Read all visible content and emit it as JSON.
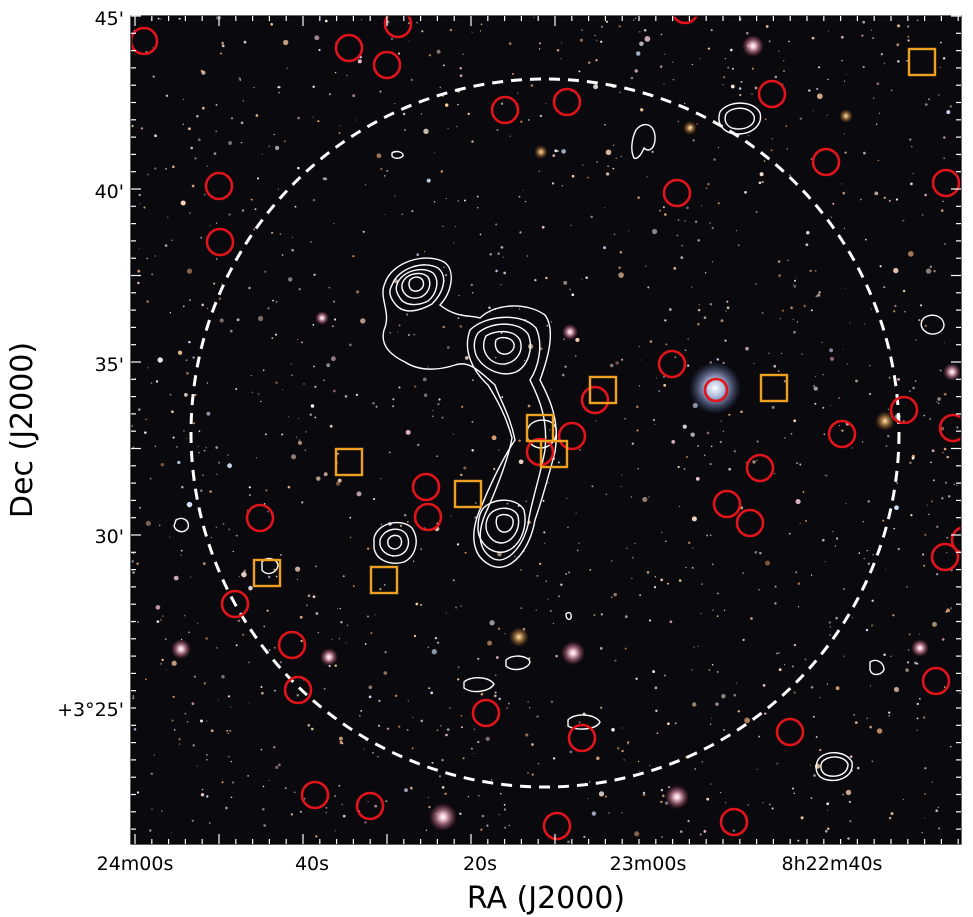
{
  "figure": {
    "xlabel": "RA (J2000)",
    "ylabel": "Dec (J2000)",
    "x_tick_labels": [
      "24m00s",
      "40s",
      "20s",
      "23m00s",
      "8h22m40s"
    ],
    "y_tick_labels": [
      "45'",
      "40'",
      "35'",
      "30'",
      "+3°25'"
    ],
    "colors": {
      "sky_background": "#08080c",
      "galaxy_marker": "#e0141a",
      "cluster_member_marker": "#f0a020",
      "radio_contour": "#ffffff",
      "aperture_circle": "#ffffff"
    },
    "marker_types": [
      "red-circle",
      "orange-square",
      "white-contour",
      "white-dashed-circle"
    ]
  }
}
